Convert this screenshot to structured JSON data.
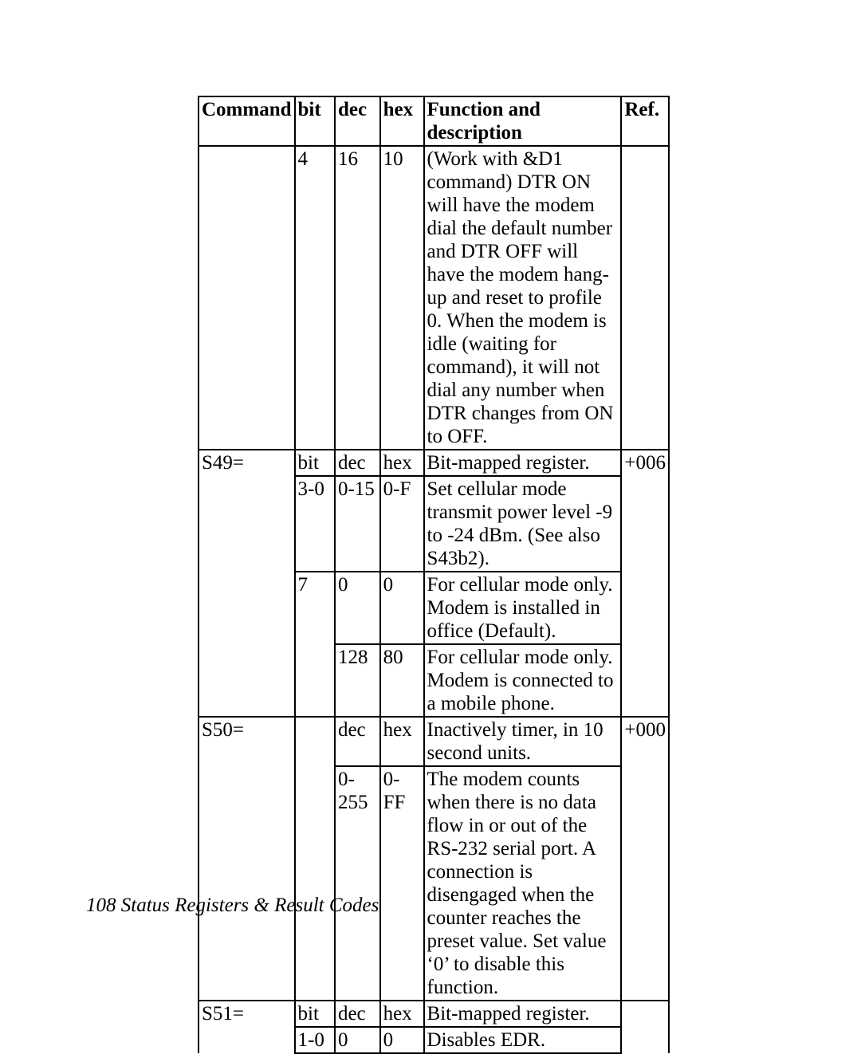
{
  "table": {
    "columns": [
      "Command",
      "bit",
      "dec",
      "hex",
      "Function and description",
      "Ref."
    ],
    "rows": [
      {
        "cmd": "",
        "bit": "4",
        "dec": "16",
        "hex": "10",
        "func": "(Work with &D1 command) DTR ON will have the modem dial the default number and DTR OFF will have the modem hang-up and reset to profile 0. When the modem is idle (waiting for command), it will not dial any number when DTR changes from ON to OFF.",
        "ref": ""
      },
      {
        "cmd": "S49=",
        "bit": "bit",
        "dec": "dec",
        "hex": "hex",
        "func": "Bit-mapped register.",
        "ref": "+006"
      },
      {
        "cmd": "",
        "bit": "3-0",
        "dec": "0-15",
        "hex": "0-F",
        "func": "Set cellular mode transmit power level -9 to -24 dBm. (See also S43b2).",
        "ref": ""
      },
      {
        "cmd": "",
        "bit": "7",
        "dec": "0",
        "hex": "0",
        "func": "For cellular mode only. Modem is installed in office (Default).",
        "ref": ""
      },
      {
        "cmd": "",
        "bit": "",
        "dec": "128",
        "hex": "80",
        "func": "For cellular mode only. Modem is connected to a mobile phone.",
        "ref": ""
      },
      {
        "cmd": "S50=",
        "bit": "",
        "dec": "dec",
        "hex": "hex",
        "func": "Inactively timer, in 10 second units.",
        "ref": "+000"
      },
      {
        "cmd": "",
        "bit": "",
        "dec": "0-255",
        "hex": "0-FF",
        "func": "The modem counts when there is no data flow in or out of the RS-232 serial port. A connection is disengaged when the counter reaches the preset value. Set value ‘0’ to disable this function.",
        "ref": ""
      },
      {
        "cmd": "S51=",
        "bit": "bit",
        "dec": "dec",
        "hex": "hex",
        "func": "Bit-mapped register.",
        "ref": ""
      },
      {
        "cmd": "",
        "bit": "1-0",
        "dec": "0",
        "hex": "0",
        "func": "Disables EDR.",
        "ref": ""
      }
    ]
  },
  "footer": "108  Status Registers & Result Codes"
}
